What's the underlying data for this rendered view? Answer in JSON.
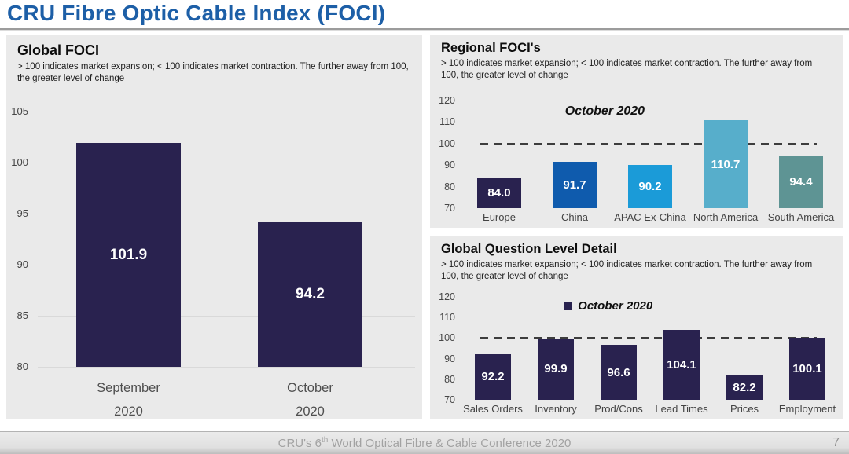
{
  "header": {
    "title": "CRU Fibre Optic Cable Index (FOCI)",
    "accent_color": "#1d5fa7"
  },
  "footer": {
    "conference_prefix": "CRU's 6",
    "conference_sup": "th",
    "conference_suffix": " World Optical Fibre & Cable Conference 2020",
    "page_number": "7"
  },
  "colors": {
    "panel_background": "#eaeaea",
    "navy_bar": "#29224f",
    "reference_line": "#3d3d3d"
  },
  "chart_data": [
    {
      "type": "bar",
      "title": "Global FOCI",
      "subtitle": "> 100 indicates market expansion; < 100 indicates market contraction. The further away from 100, the greater level of change",
      "categories": [
        [
          "September",
          "2020"
        ],
        [
          "October",
          "2020"
        ]
      ],
      "values": [
        101.9,
        94.2
      ],
      "bar_colors": [
        "#29224f",
        "#29224f"
      ],
      "ylim": [
        80,
        105
      ],
      "yticks": [
        105,
        100,
        95,
        90,
        85,
        80
      ],
      "gridlines": true,
      "reference_line": null,
      "annotation": null,
      "legend": null,
      "legend_position": null
    },
    {
      "type": "bar",
      "title": "Regional FOCI's",
      "subtitle": "> 100 indicates market expansion; < 100 indicates market contraction. The further away from 100, the greater level of change",
      "categories": [
        "Europe",
        "China",
        "APAC Ex-China",
        "North America",
        "South America"
      ],
      "values": [
        84.0,
        91.7,
        90.2,
        110.7,
        94.4
      ],
      "bar_colors": [
        "#29224f",
        "#0f5bad",
        "#1b9bd8",
        "#57aecb",
        "#5e9494"
      ],
      "ylim": [
        70,
        120
      ],
      "yticks": [
        120,
        110,
        100,
        90,
        80,
        70
      ],
      "gridlines": false,
      "reference_line": 100,
      "annotation": "October 2020",
      "legend": null,
      "legend_position": null
    },
    {
      "type": "bar",
      "title": "Global Question Level Detail",
      "subtitle": "> 100 indicates market expansion; < 100 indicates market contraction. The further away from 100, the greater level of change",
      "categories": [
        "Sales Orders",
        "Inventory",
        "Prod/Cons",
        "Lead Times",
        "Prices",
        "Employment"
      ],
      "values": [
        92.2,
        99.9,
        96.6,
        104.1,
        82.2,
        100.1
      ],
      "bar_colors": [
        "#29224f",
        "#29224f",
        "#29224f",
        "#29224f",
        "#29224f",
        "#29224f"
      ],
      "ylim": [
        70,
        120
      ],
      "yticks": [
        120,
        110,
        100,
        90,
        80,
        70
      ],
      "gridlines": false,
      "reference_line": 100,
      "annotation": null,
      "legend": {
        "label": "October 2020",
        "color": "#29224f"
      },
      "legend_position": "top-center"
    }
  ]
}
